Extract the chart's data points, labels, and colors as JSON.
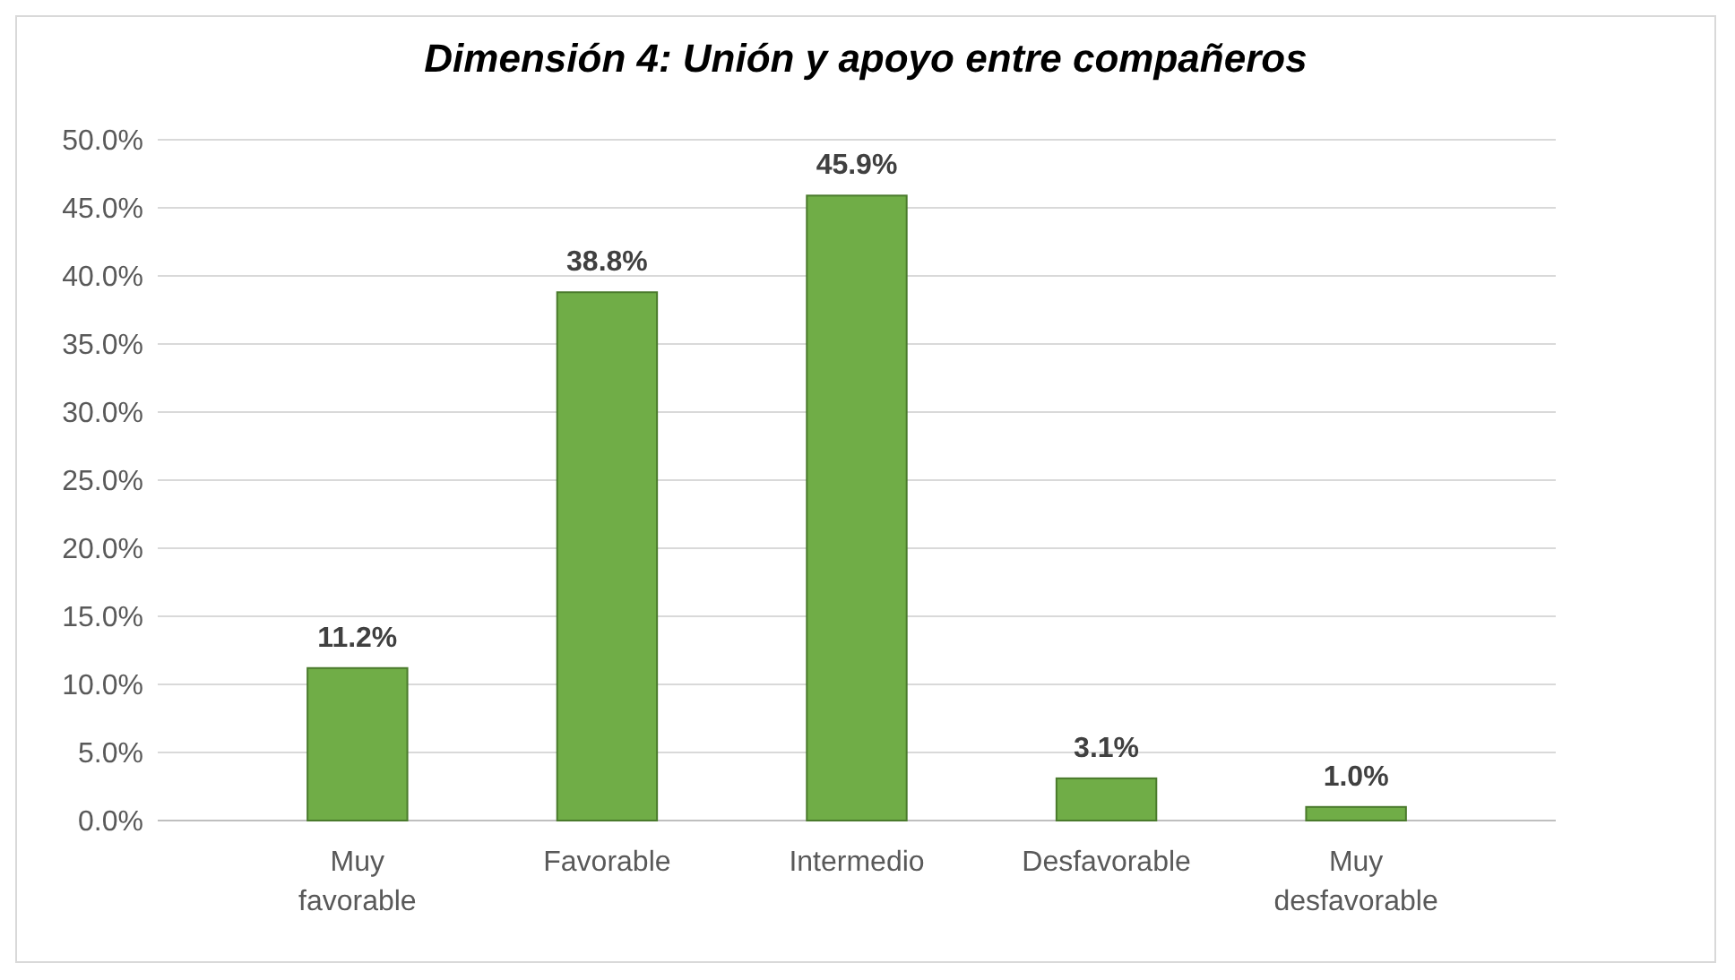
{
  "chart_data": {
    "type": "bar",
    "title": "Dimensión 4: Unión y apoyo entre compañeros",
    "categories": [
      "Muy favorable",
      "Favorable",
      "Intermedio",
      "Desfavorable",
      "Muy desfavorable"
    ],
    "values": [
      11.2,
      38.8,
      45.9,
      3.1,
      1.0
    ],
    "value_labels": [
      "11.2%",
      "38.8%",
      "45.9%",
      "3.1%",
      "1.0%"
    ],
    "color": "#70ad47",
    "ylim": [
      0,
      50
    ],
    "yticks": [
      {
        "value": 0,
        "label": "0.0%"
      },
      {
        "value": 5,
        "label": "5.0%"
      },
      {
        "value": 10,
        "label": "10.0%"
      },
      {
        "value": 15,
        "label": "15.0%"
      },
      {
        "value": 20,
        "label": "20.0%"
      },
      {
        "value": 25,
        "label": "25.0%"
      },
      {
        "value": 30,
        "label": "30.0%"
      },
      {
        "value": 35,
        "label": "35.0%"
      },
      {
        "value": 40,
        "label": "40.0%"
      },
      {
        "value": 45,
        "label": "45.0%"
      },
      {
        "value": 50,
        "label": "50.0%"
      }
    ],
    "grid": "y"
  }
}
